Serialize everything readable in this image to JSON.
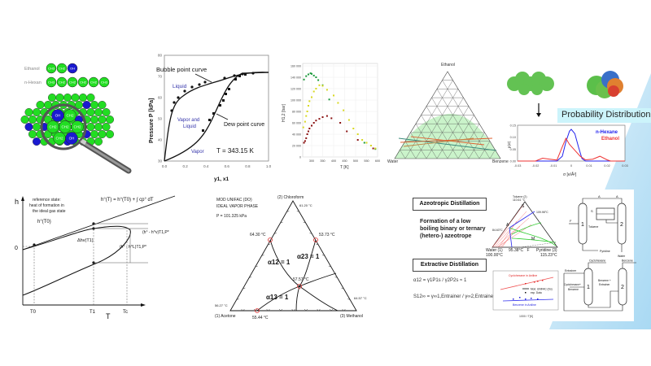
{
  "slide": {
    "background_accent": "#bde3f7"
  },
  "molecule_panel": {
    "label_ethanol": "Ethanol",
    "label_nhexane": "n-Hexan",
    "group_ch3": "CH3",
    "group_ch2": "CH2",
    "group_oh": "OH",
    "colors": {
      "ch": "#22dd22",
      "oh": "#1a1ad0"
    }
  },
  "vle_chart": {
    "title": "",
    "ylabel": "Pressure  P [kPa]",
    "xlabel": "y1, x1",
    "annotation_bubble": "Bubble point curve",
    "annotation_dew": "Dew point curve",
    "region_liquid": "Liquid",
    "region_vle": [
      "Vapor and",
      "Liquid"
    ],
    "region_vapor": "Vapor",
    "temperature": "T = 343.15 K",
    "y_ticks": [
      "30",
      "40",
      "50",
      "60",
      "70",
      "80"
    ],
    "x_ticks": [
      "0.0",
      "0.2",
      "0.4",
      "0.6",
      "0.8",
      "1.0"
    ]
  },
  "henry_chart": {
    "ylabel": "H1,2 [bar]",
    "xlabel": "T [K]",
    "y_ticks": [
      "0",
      "20 000",
      "40 000",
      "60 000",
      "80 000",
      "100 000",
      "120 000",
      "140 000",
      "160 000"
    ],
    "x_ticks": [
      "300",
      "350",
      "400",
      "450",
      "500",
      "550",
      "600"
    ]
  },
  "ternary_lle": {
    "apex_top": "Ethanol",
    "apex_left": "Water",
    "apex_right": "Benzene"
  },
  "cosmo_panel": {
    "banner": "Probability Distribution",
    "legend": [
      "n-Hexane",
      "Ethanol"
    ],
    "ylabel": "p(σ)",
    "xlabel": "σ [e/Å²]",
    "y_ticks": [
      "0.00",
      "0.05",
      "0.10",
      "0.15"
    ],
    "x_ticks": [
      "-0.03",
      "-0.02",
      "-0.01",
      "0",
      "0.01",
      "0.02",
      "0.03"
    ],
    "colors": {
      "nhexane": "#2222ee",
      "ethanol": "#ee3333"
    }
  },
  "enthalpy_diagram": {
    "y_axis": "h",
    "x_axis": "T",
    "zero_label": "0",
    "reference_note": [
      "reference state:",
      "heat of formation in",
      "the ideal gas state"
    ],
    "formula": "h°(T) = h°(T0) + ∫ cp° dT",
    "h0_label": "h°(T0)",
    "dh_label": "Δhv(T1)",
    "dev1": "(h° - h^v)T1,P*",
    "dev2": "(h° - h^L)T1,P*",
    "t_ticks": [
      "T0",
      "T1",
      "Tc"
    ]
  },
  "azeotrope_ternary": {
    "model": "MOD UNIFAC (DO)",
    "phase": "IDEAL VAPOR PHASE",
    "pressure": "P =  101.325 kPa",
    "apex_top": "(2) Chloroform",
    "apex_left": "(1) Acetone",
    "apex_right": "(3) Methanol",
    "temp_top": "61.20 °C",
    "temp_left": "56.27 °C",
    "temp_right": "64.57 °C",
    "az_12": "64.30 °C",
    "az_23": "53.73 °C",
    "az_13": "55.44 °C",
    "az_ternary": "57.57 °C",
    "alpha12": "α12 = 1",
    "alpha23": "α23 = 1",
    "alpha13": "α13 = 1"
  },
  "distillation_panel": {
    "azeo_title": "Azeotropic Distillation",
    "azeo_text": [
      "Formation of a low",
      "boiling binary or ternary",
      "(hetero-) azeotrope"
    ],
    "extr_title": "Extractive Distillation",
    "alpha_formula": "α12 = γ1P1s / γ2P2s ≈ 1",
    "sel_formula": "S12∞ = γ∞1,Entrainer / γ∞2,Entrainer  >>1 (<<1)",
    "tern_top": [
      "Toluene (2)",
      "110.61 °C"
    ],
    "tern_left": [
      "Water (1)",
      "100.00°C"
    ],
    "tern_right": [
      "Pyridine (3)",
      "115.23°C"
    ],
    "tern_pts": {
      "A": "A",
      "S": "S",
      "M": "M",
      "F": "F",
      "t1": "84.63°C",
      "t2": "109.98°C",
      "t3": "95.38°C"
    },
    "plot_legend": [
      "Mod. UNIFAC (Do)",
      "exp. Data"
    ],
    "plot_series": [
      "Cyclohexane in Aniline",
      "Benzene in Aniline"
    ],
    "plot_xlabel": "1000 / T[K]",
    "flow1": {
      "col1": "1",
      "col2": "2",
      "feed": "F",
      "A": "A",
      "S": "S",
      "toluene": "Toluene",
      "pyridine": "Pyridine",
      "water": "Water"
    },
    "flow2": {
      "col1": "1",
      "col2": "2",
      "entrainer": "Entrainer",
      "feed": [
        "Cyclohexane+",
        "Benzene"
      ],
      "top1": "Cyclohexane",
      "mid": [
        "Benzene +",
        "Entrainer"
      ],
      "top2": "Benzene"
    }
  }
}
